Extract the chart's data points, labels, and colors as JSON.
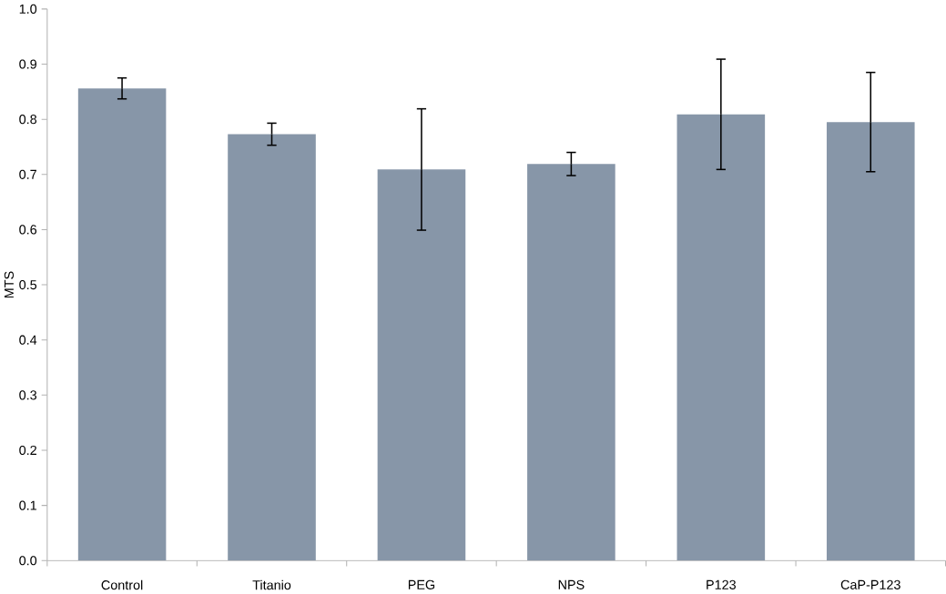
{
  "chart_data": {
    "type": "bar",
    "ylabel": "MTS",
    "categories": [
      "Control",
      "Titanio",
      "PEG",
      "NPS",
      "P123",
      "CaP-P123"
    ],
    "values": [
      0.856,
      0.773,
      0.709,
      0.719,
      0.809,
      0.795
    ],
    "errors": [
      0.019,
      0.02,
      0.11,
      0.021,
      0.1,
      0.09
    ],
    "color": "#8796a8",
    "ylim": [
      0,
      1.0
    ],
    "yticks": [
      {
        "value": 0,
        "label": "0.0"
      },
      0.1,
      0.2,
      0.3,
      0.4,
      0.5,
      0.6,
      0.7,
      0.8,
      0.9,
      {
        "value": 1.0,
        "label": "1.0"
      }
    ],
    "grid": false
  }
}
